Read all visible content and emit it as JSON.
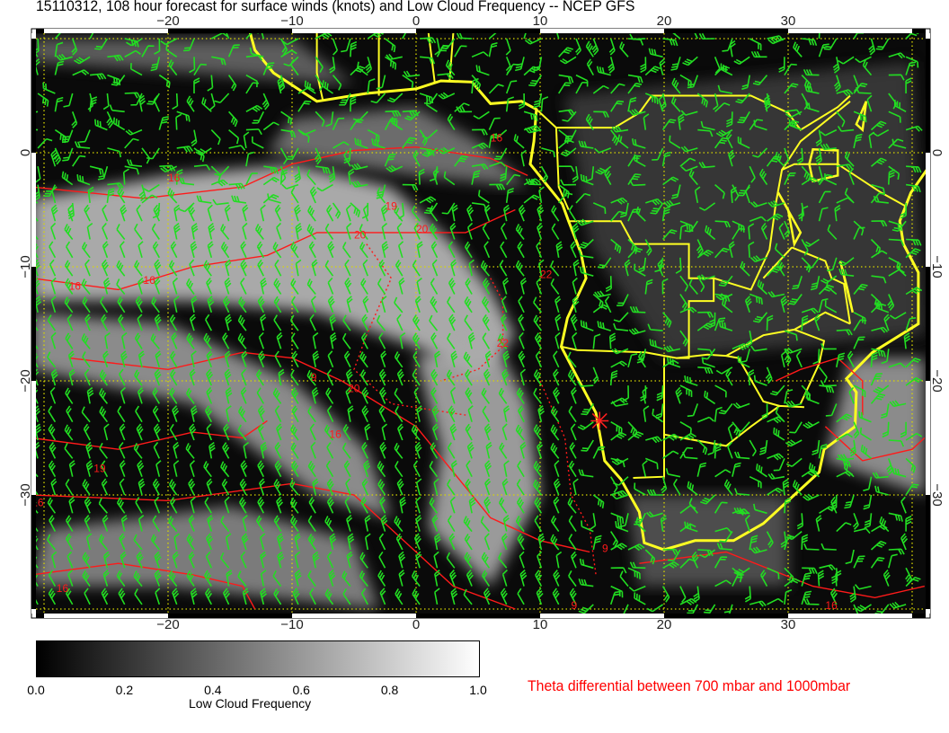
{
  "title": "15110312, 108 hour forecast for surface winds (knots) and Low Cloud Frequency -- NCEP GFS",
  "lon_ticks": [
    "−20",
    "−10",
    "0",
    "10",
    "20",
    "30"
  ],
  "lat_ticks": [
    "0",
    "−10",
    "−20",
    "−30"
  ],
  "contour_labels": [
    "16",
    "16",
    "16",
    "16",
    "19",
    "20",
    "20",
    "22",
    "9",
    "20",
    "16",
    "19",
    "16",
    "16",
    "9",
    "9",
    "16",
    "22"
  ],
  "colorbar": {
    "ticks": [
      "0.0",
      "0.2",
      "0.4",
      "0.6",
      "0.8",
      "1.0"
    ],
    "label": "Low Cloud Frequency",
    "range": [
      0.0,
      1.0
    ]
  },
  "theta_label": "Theta differential between 700 mbar and 1000mbar",
  "colors": {
    "wind_barbs": "#22dd22",
    "coastline": "#ffff22",
    "contours": "#ff1a1a",
    "grid": "#d8d800",
    "background": "#000000"
  }
}
